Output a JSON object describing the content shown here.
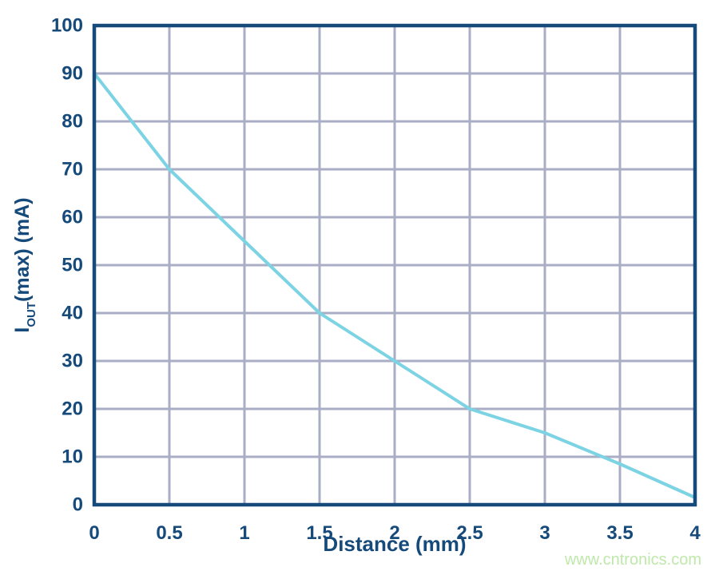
{
  "chart_data": {
    "type": "line",
    "x": [
      0,
      0.5,
      1,
      1.5,
      2,
      2.5,
      3,
      3.5,
      4
    ],
    "values": [
      90,
      70,
      55,
      40,
      30,
      20,
      15,
      8.5,
      1.5
    ],
    "series_name": "IOUT(max)",
    "xlabel": "Distance (mm)",
    "ylabel": "IOUT(max) (mA)",
    "ylabel_parts": {
      "main": "I",
      "sub": "OUT",
      "rest": "(max) (mA)"
    },
    "xlim": [
      0,
      4
    ],
    "ylim": [
      0,
      100
    ],
    "x_ticks": [
      "0",
      "0.5",
      "1",
      "1.5",
      "2",
      "2.5",
      "3",
      "3.5",
      "4"
    ],
    "y_ticks": [
      "0",
      "10",
      "20",
      "30",
      "40",
      "50",
      "60",
      "70",
      "80",
      "90",
      "100"
    ],
    "grid": true,
    "legend": false,
    "colors": {
      "line": "#7bd3e3",
      "grid": "#a9aec6",
      "axis": "#164a7a",
      "text": "#164a7a",
      "watermark": "#bfe8ab",
      "background": "#ffffff"
    }
  },
  "watermark": {
    "text": "www.cntronics.com"
  }
}
